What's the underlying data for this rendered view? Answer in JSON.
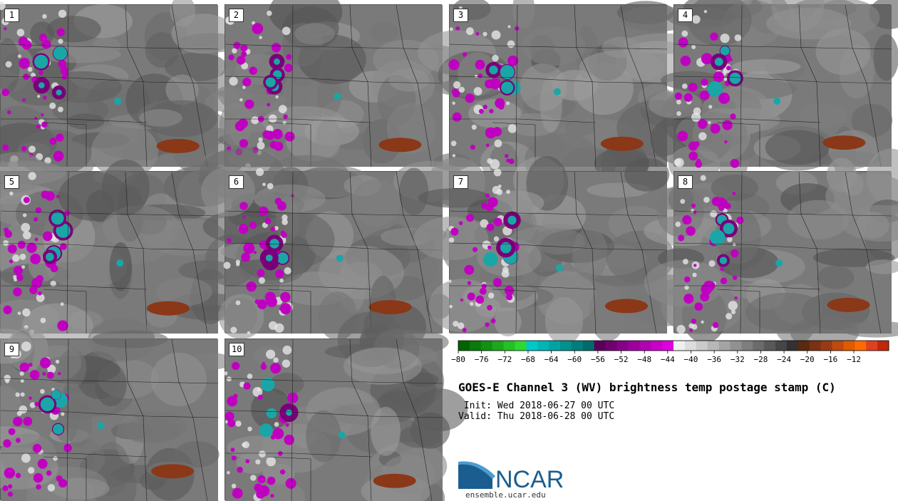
{
  "panels": [
    {
      "label": "1"
    },
    {
      "label": "2"
    },
    {
      "label": "3"
    },
    {
      "label": "4"
    },
    {
      "label": "5"
    },
    {
      "label": "6"
    },
    {
      "label": "7"
    },
    {
      "label": "8"
    },
    {
      "label": "9"
    },
    {
      "label": "10"
    }
  ],
  "colorbar": {
    "ticks": [
      "−80",
      "−76",
      "−72",
      "−68",
      "−64",
      "−60",
      "−56",
      "−52",
      "−48",
      "−44",
      "−40",
      "−36",
      "−32",
      "−28",
      "−24",
      "−20",
      "−16",
      "−12"
    ],
    "colors": [
      "#006400",
      "#0a7a0a",
      "#139013",
      "#1ca81c",
      "#25c025",
      "#2ed82e",
      "#00c8c8",
      "#00b5b5",
      "#00a3a3",
      "#009090",
      "#007d7d",
      "#006b6b",
      "#5a005a",
      "#700070",
      "#860086",
      "#9c009c",
      "#b200b2",
      "#c800c8",
      "#de00de",
      "#f0f0f0",
      "#dddddd",
      "#cacaca",
      "#b7b7b7",
      "#a4a4a4",
      "#919191",
      "#7e7e7e",
      "#6b6b6b",
      "#585858",
      "#454545",
      "#323232",
      "#5a2a10",
      "#7a3212",
      "#9a3a14",
      "#c04a10",
      "#e05a00",
      "#ff6a00",
      "#e04020",
      "#c02808"
    ]
  },
  "title": "GOES-E Channel 3 (WV) brightness temp postage stamp (C)",
  "init": " Init: Wed 2018-06-27 00 UTC",
  "valid": "Valid: Thu 2018-06-28 00 UTC",
  "logo": {
    "text": "NCAR",
    "url": "ensemble.ucar.edu"
  }
}
